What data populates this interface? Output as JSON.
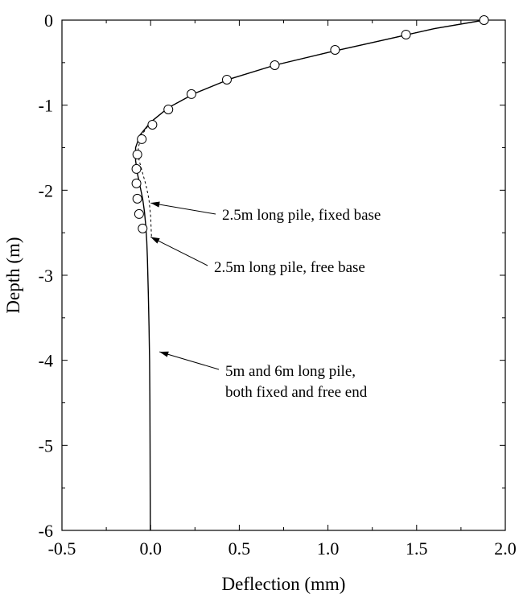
{
  "chart_data": {
    "type": "line",
    "title": "",
    "xlabel": "Deflection (mm)",
    "ylabel": "Depth (m)",
    "xlim": [
      -0.5,
      2.0
    ],
    "ylim": [
      -6,
      0
    ],
    "x_ticks": [
      "-0.5",
      "0.0",
      "0.5",
      "1.0",
      "1.5",
      "2.0"
    ],
    "y_ticks": [
      "0",
      "-1",
      "-2",
      "-3",
      "-4",
      "-5",
      "-6"
    ],
    "x_tick_values": [
      -0.5,
      0.0,
      0.5,
      1.0,
      1.5,
      2.0
    ],
    "y_tick_values": [
      0,
      -1,
      -2,
      -3,
      -4,
      -5,
      -6
    ],
    "grid": false,
    "legend": "none",
    "series": [
      {
        "style": "dashed",
        "x": [
          1.88,
          1.6,
          1.3,
          1.0,
          0.7,
          0.45,
          0.25,
          0.1,
          0.0,
          -0.05,
          -0.07,
          -0.065,
          -0.045,
          -0.025,
          -0.01,
          0.0,
          0.005
        ],
        "y": [
          0.0,
          -0.1,
          -0.24,
          -0.38,
          -0.53,
          -0.69,
          -0.86,
          -1.03,
          -1.2,
          -1.35,
          -1.5,
          -1.65,
          -1.8,
          -1.95,
          -2.1,
          -2.3,
          -2.55
        ]
      },
      {
        "style": "solid",
        "x": [
          1.88,
          1.6,
          1.3,
          1.0,
          0.7,
          0.45,
          0.25,
          0.1,
          0.0,
          -0.06,
          -0.085,
          -0.085,
          -0.075,
          -0.06,
          -0.045,
          -0.035,
          -0.028,
          -0.022,
          -0.018,
          -0.013,
          -0.009,
          -0.006,
          -0.004,
          -0.003,
          -0.002
        ],
        "y": [
          0.0,
          -0.1,
          -0.24,
          -0.38,
          -0.53,
          -0.69,
          -0.86,
          -1.03,
          -1.2,
          -1.35,
          -1.5,
          -1.65,
          -1.8,
          -1.95,
          -2.1,
          -2.25,
          -2.4,
          -2.6,
          -2.8,
          -3.2,
          -3.6,
          -4.0,
          -4.5,
          -5.0,
          -6.0
        ]
      },
      {
        "style": "markers",
        "marker": "open-circle",
        "x": [
          1.88,
          1.44,
          1.04,
          0.7,
          0.43,
          0.23,
          0.1,
          0.01,
          -0.05,
          -0.075,
          -0.08,
          -0.08,
          -0.075,
          -0.065,
          -0.045
        ],
        "y": [
          0.0,
          -0.17,
          -0.35,
          -0.53,
          -0.7,
          -0.87,
          -1.05,
          -1.23,
          -1.4,
          -1.58,
          -1.75,
          -1.92,
          -2.1,
          -2.28,
          -2.45
        ]
      }
    ],
    "annotations": [
      {
        "text": [
          "2.5m long pile, fixed base"
        ],
        "arrow_to": [
          0.0,
          -2.15
        ]
      },
      {
        "text": [
          "2.5m long pile, free base"
        ],
        "arrow_to": [
          0.0,
          -2.55
        ]
      },
      {
        "text": [
          "5m and 6m long pile,",
          "both fixed and free end"
        ],
        "arrow_to": [
          0.05,
          -3.9
        ]
      }
    ]
  }
}
